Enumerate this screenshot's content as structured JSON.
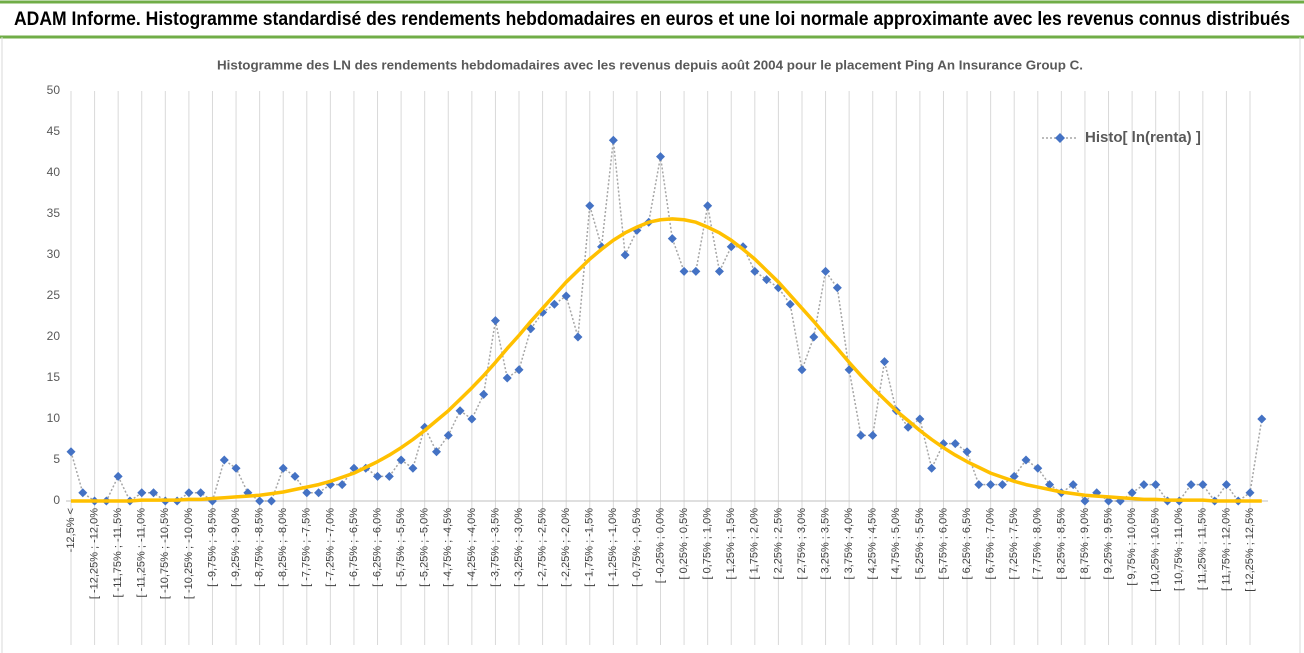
{
  "header": {
    "title": "ADAM Informe. Histogramme standardisé des rendements hebdomadaires en euros et une loi normale approximante avec les revenus connus distribués"
  },
  "chart_data": {
    "type": "line",
    "title": "Histogramme des LN des rendements hebdomadaires avec les revenus depuis août 2004 pour le placement Ping An Insurance Group C.",
    "categories": [
      "-12,5% <",
      null,
      "[ -12,25% ; -12,0%",
      null,
      "[ -11,75% ; -11,5%",
      null,
      "[ -11,25% ; -11,0%",
      null,
      "[ -10,75% ; -10,5%",
      null,
      "[ -10,25% ; -10,0%",
      null,
      "[ -9,75% ; -9,5%",
      null,
      "[ -9,25% ; -9,0%",
      null,
      "[ -8,75% ; -8,5%",
      null,
      "[ -8,25% ; -8,0%",
      null,
      "[ -7,75% ; -7,5%",
      null,
      "[ -7,25% ; -7,0%",
      null,
      "[ -6,75% ; -6,5%",
      null,
      "[ -6,25% ; -6,0%",
      null,
      "[ -5,75% ; -5,5%",
      null,
      "[ -5,25% ; -5,0%",
      null,
      "[ -4,75% ; -4,5%",
      null,
      "[ -4,25% ; -4,0%",
      null,
      "[ -3,75% ; -3,5%",
      null,
      "[ -3,25% ; -3,0%",
      null,
      "[ -2,75% ; -2,5%",
      null,
      "[ -2,25% ; -2,0%",
      null,
      "[ -1,75% ; -1,5%",
      null,
      "[ -1,25% ; -1,0%",
      null,
      "[ -0,75% ; -0,5%",
      null,
      "[ -0,25% ; 0,0%",
      null,
      "[ 0,25% ; 0,5%",
      null,
      "[ 0,75% ; 1,0%",
      null,
      "[ 1,25% ; 1,5%",
      null,
      "[ 1,75% ; 2,0%",
      null,
      "[ 2,25% ; 2,5%",
      null,
      "[ 2,75% ; 3,0%",
      null,
      "[ 3,25% ; 3,5%",
      null,
      "[ 3,75% ; 4,0%",
      null,
      "[ 4,25% ; 4,5%",
      null,
      "[ 4,75% ; 5,0%",
      null,
      "[ 5,25% ; 5,5%",
      null,
      "[ 5,75% ; 6,0%",
      null,
      "[ 6,25% ; 6,5%",
      null,
      "[ 6,75% ; 7,0%",
      null,
      "[ 7,25% ; 7,5%",
      null,
      "[ 7,75% ; 8,0%",
      null,
      "[ 8,25% ; 8,5%",
      null,
      "[ 8,75% ; 9,0%",
      null,
      "[ 9,25% ; 9,5%",
      null,
      "[ 9,75% ; 10,0%",
      null,
      "[ 10,25% ; 10,5%",
      null,
      "[ 10,75% ; 11,0%",
      null,
      "[ 11,25% ; 11,5%",
      null,
      "[ 11,75% ; 12,0%",
      null,
      "[ 12,25% ; 12,5%",
      null
    ],
    "series": [
      {
        "name": "Histo[ ln(renta) ]",
        "color": "#4472c4",
        "line_color": "#a6a6a6",
        "values": [
          6,
          1,
          0,
          0,
          3,
          0,
          1,
          1,
          0,
          0,
          1,
          1,
          0,
          5,
          4,
          1,
          0,
          0,
          4,
          3,
          1,
          1,
          2,
          2,
          4,
          4,
          3,
          3,
          5,
          4,
          9,
          6,
          8,
          11,
          10,
          13,
          22,
          15,
          16,
          21,
          23,
          24,
          25,
          20,
          36,
          31,
          44,
          30,
          33,
          34,
          42,
          32,
          28,
          28,
          36,
          28,
          31,
          31,
          28,
          27,
          26,
          24,
          16,
          20,
          28,
          26,
          16,
          8,
          8,
          17,
          11,
          9,
          10,
          4,
          7,
          7,
          6,
          2,
          2,
          2,
          3,
          5,
          4,
          2,
          1,
          2,
          0,
          1,
          0,
          0,
          1,
          2,
          2,
          0,
          0,
          2,
          2,
          0,
          2,
          0,
          1,
          10
        ]
      }
    ],
    "fit": {
      "color": "#ffc000",
      "values": [
        0,
        0,
        0,
        0,
        0,
        0,
        0.1,
        0.1,
        0.1,
        0.1,
        0.2,
        0.2,
        0.3,
        0.4,
        0.5,
        0.6,
        0.7,
        0.9,
        1.1,
        1.4,
        1.7,
        2.0,
        2.4,
        2.9,
        3.4,
        4.1,
        4.8,
        5.6,
        6.5,
        7.5,
        8.6,
        9.8,
        11.0,
        12.4,
        13.8,
        15.3,
        16.9,
        18.6,
        20.2,
        21.9,
        23.5,
        25.1,
        26.7,
        28.1,
        29.5,
        30.7,
        31.8,
        32.7,
        33.4,
        34.0,
        34.3,
        34.4,
        34.3,
        34.0,
        33.4,
        32.7,
        31.8,
        30.7,
        29.5,
        28.1,
        26.7,
        25.1,
        23.5,
        21.9,
        20.2,
        18.6,
        16.9,
        15.3,
        13.8,
        12.4,
        11.0,
        9.8,
        8.6,
        7.5,
        6.5,
        5.6,
        4.8,
        4.1,
        3.4,
        2.9,
        2.4,
        2.0,
        1.7,
        1.4,
        1.1,
        0.9,
        0.7,
        0.6,
        0.5,
        0.4,
        0.3,
        0.2,
        0.2,
        0.1,
        0.1,
        0.1,
        0.1,
        0,
        0,
        0,
        0,
        0
      ]
    },
    "ylim": [
      0,
      50
    ],
    "yticks": [
      0,
      5,
      10,
      15,
      20,
      25,
      30,
      35,
      40,
      45,
      50
    ],
    "grid": true,
    "legend": "top-right"
  }
}
